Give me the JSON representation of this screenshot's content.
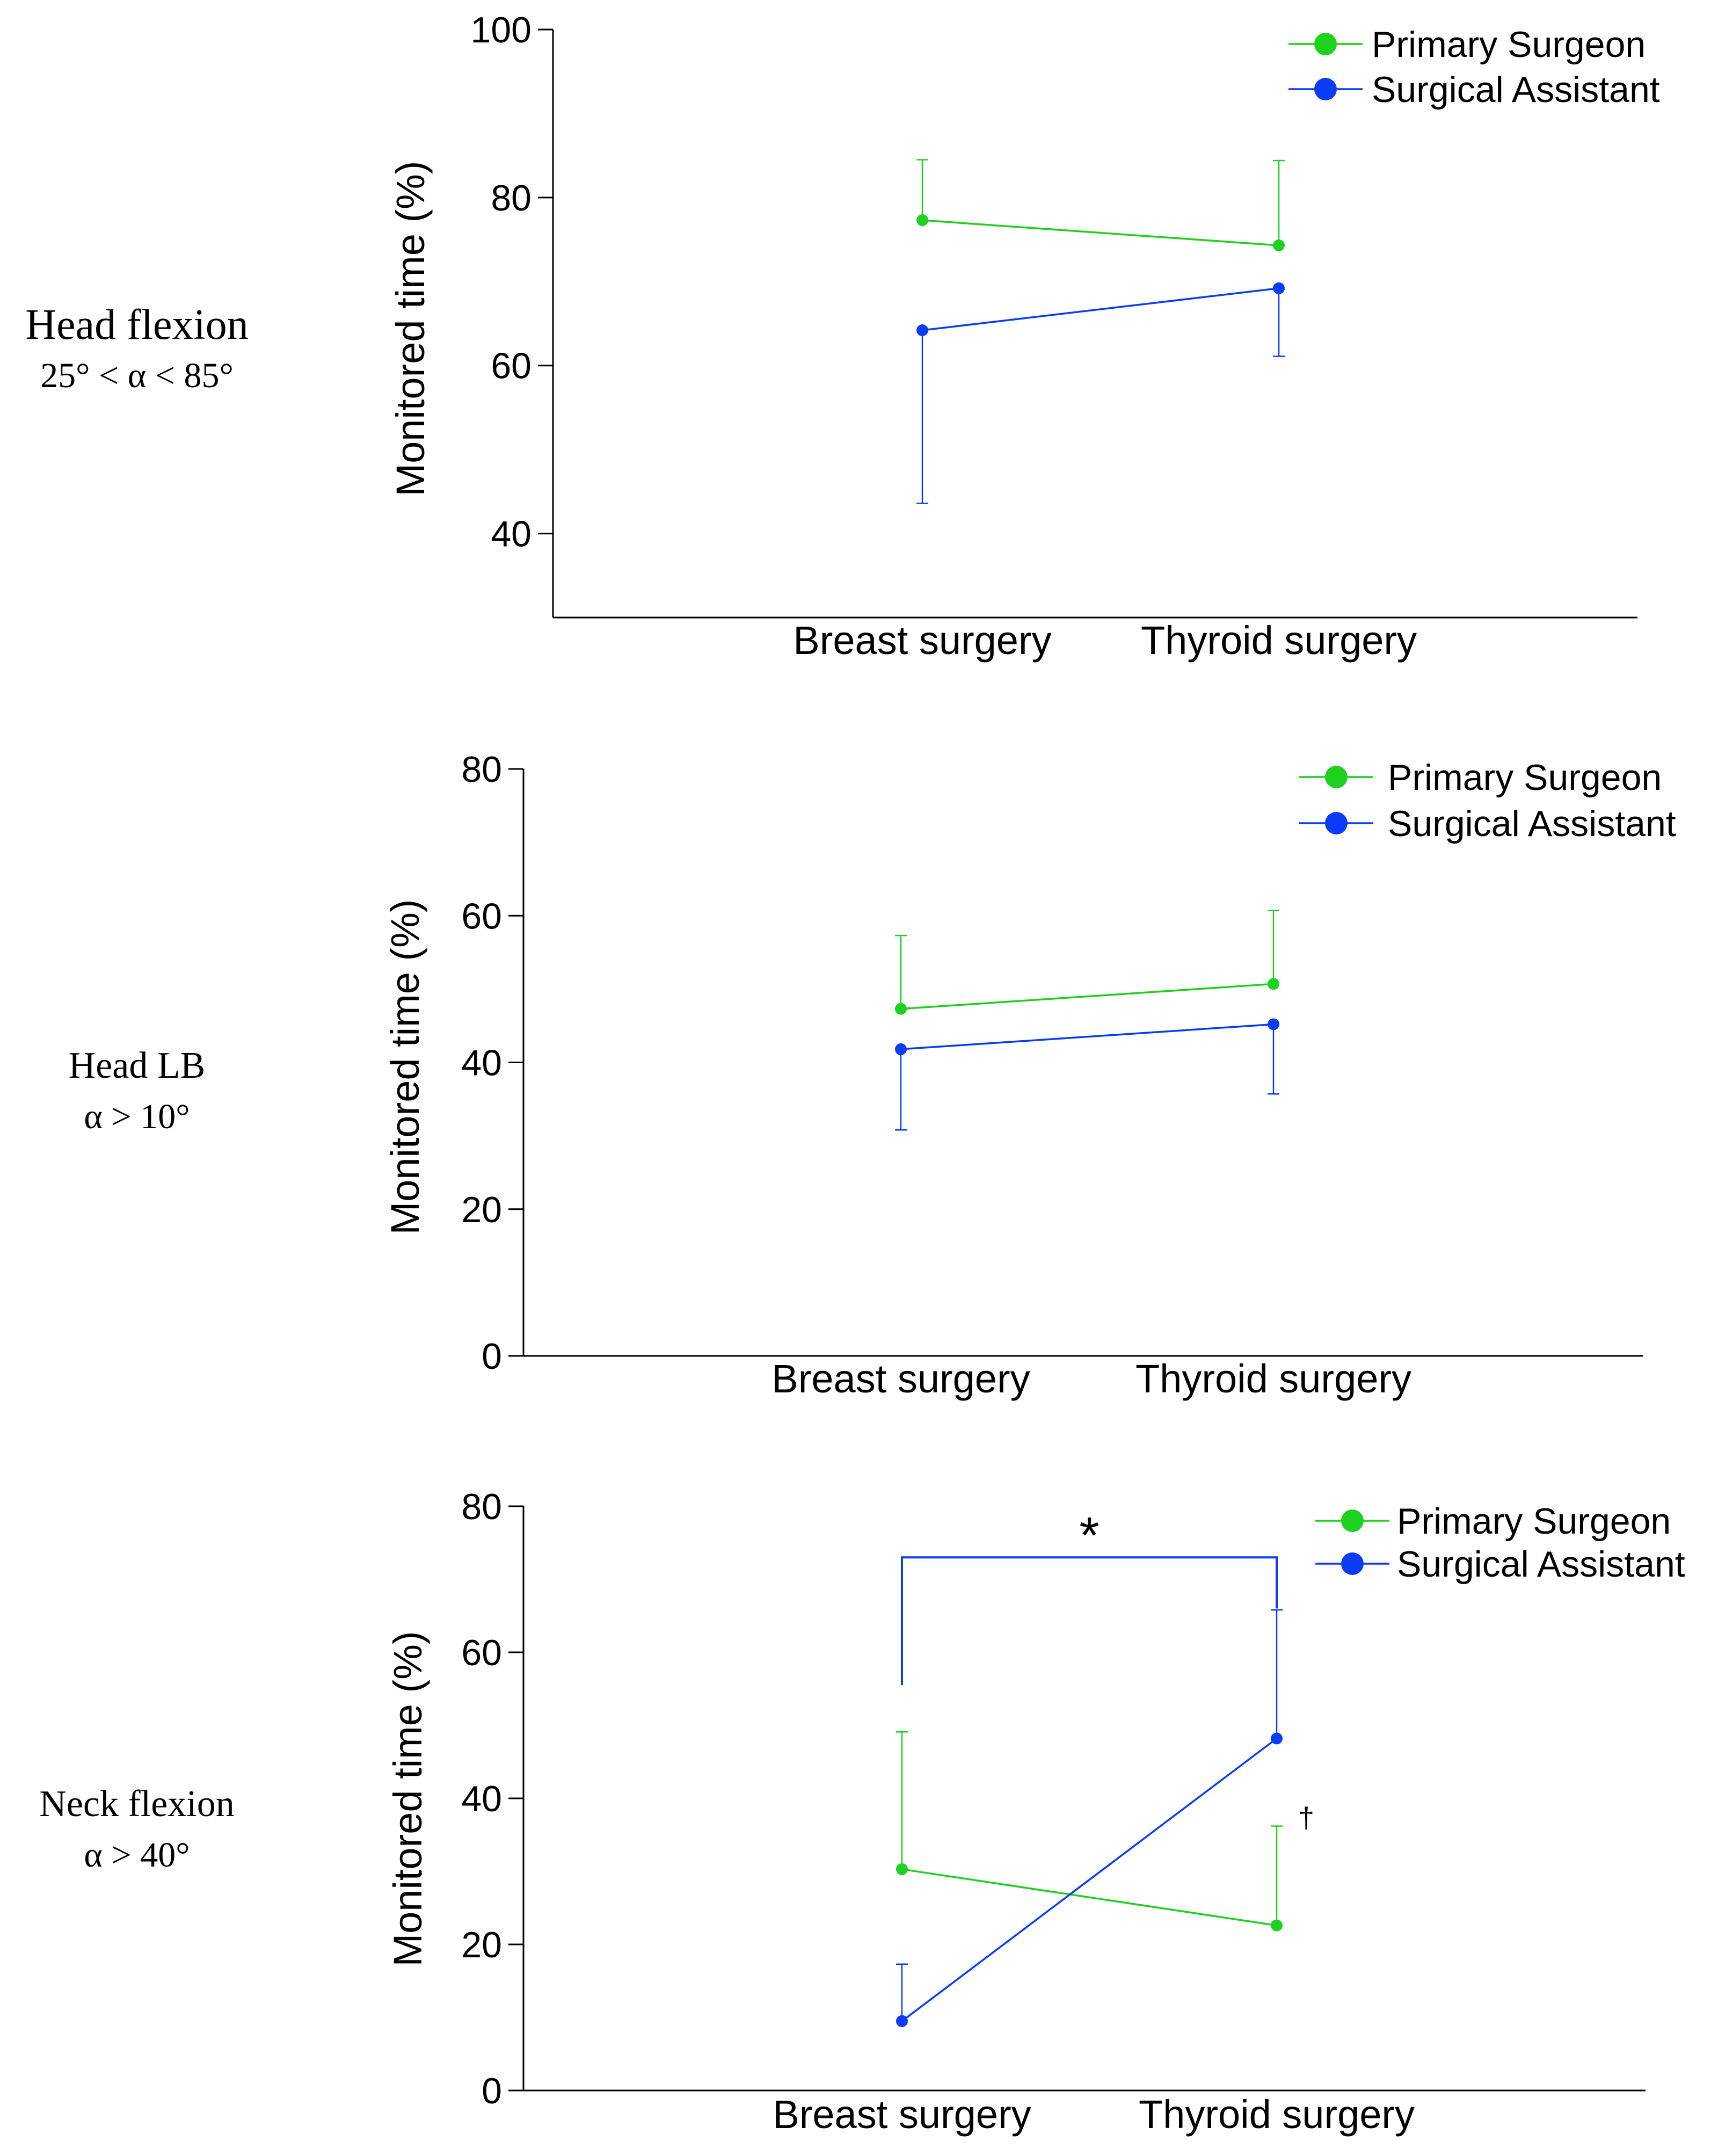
{
  "colors": {
    "primary_surgeon": "#1ed11e",
    "surgical_assistant": "#0a3cf5",
    "axis": "#000000"
  },
  "chart_data": [
    {
      "type": "line",
      "row_label": {
        "title": "Head flexion",
        "condition": "25° < α < 85°"
      },
      "categories": [
        "Breast surgery",
        "Thyroid surgery"
      ],
      "ylabel": "Monitored time (%)",
      "ylim": [
        30,
        100
      ],
      "yticks": [
        40,
        60,
        80,
        100
      ],
      "legend": [
        "Primary Surgeon",
        "Surgical Assistant"
      ],
      "legend_position": "top-right",
      "series": [
        {
          "name": "Primary Surgeon",
          "values": [
            77.3,
            74.3
          ],
          "error": [
            7.2,
            10.1
          ],
          "error_dir": "up"
        },
        {
          "name": "Surgical Assistant",
          "values": [
            64.2,
            69.2
          ],
          "error": [
            20.6,
            8.1
          ],
          "error_dir": "down"
        }
      ],
      "annotations": []
    },
    {
      "type": "line",
      "row_label": {
        "title": "Head LB",
        "condition": "α > 10°"
      },
      "categories": [
        "Breast surgery",
        "Thyroid surgery"
      ],
      "ylabel": "Monitored time (%)",
      "ylim": [
        0,
        80
      ],
      "yticks": [
        0,
        20,
        40,
        60,
        80
      ],
      "legend": [
        "Primary Surgeon",
        "Surgical Assistant"
      ],
      "legend_position": "top-right",
      "series": [
        {
          "name": "Primary Surgeon",
          "values": [
            47.3,
            50.7
          ],
          "error": [
            10.0,
            10.0
          ],
          "error_dir": "up"
        },
        {
          "name": "Surgical Assistant",
          "values": [
            41.8,
            45.2
          ],
          "error": [
            11.0,
            9.5
          ],
          "error_dir": "down"
        }
      ],
      "annotations": []
    },
    {
      "type": "line",
      "row_label": {
        "title": "Neck flexion",
        "condition": "α > 40°"
      },
      "categories": [
        "Breast surgery",
        "Thyroid surgery"
      ],
      "ylabel": "Monitored time (%)",
      "ylim": [
        0,
        80
      ],
      "yticks": [
        0,
        20,
        40,
        60,
        80
      ],
      "legend": [
        "Primary Surgeon",
        "Surgical Assistant"
      ],
      "legend_position": "top-right",
      "series": [
        {
          "name": "Primary Surgeon",
          "values": [
            30.3,
            22.6
          ],
          "error": [
            18.8,
            13.6
          ],
          "error_dir": "up"
        },
        {
          "name": "Surgical Assistant",
          "values": [
            9.5,
            48.2
          ],
          "error": [
            7.8,
            17.6
          ],
          "error_dir": "up"
        }
      ],
      "annotations": [
        {
          "type": "bracket",
          "text": "*",
          "from": "Breast surgery",
          "to": "Thyroid surgery",
          "y": 73,
          "left_end": 55.5,
          "right_end": 66,
          "color": "surgical_assistant"
        },
        {
          "type": "mark",
          "text": "†",
          "category": "Thyroid surgery",
          "y": 36
        }
      ]
    }
  ]
}
